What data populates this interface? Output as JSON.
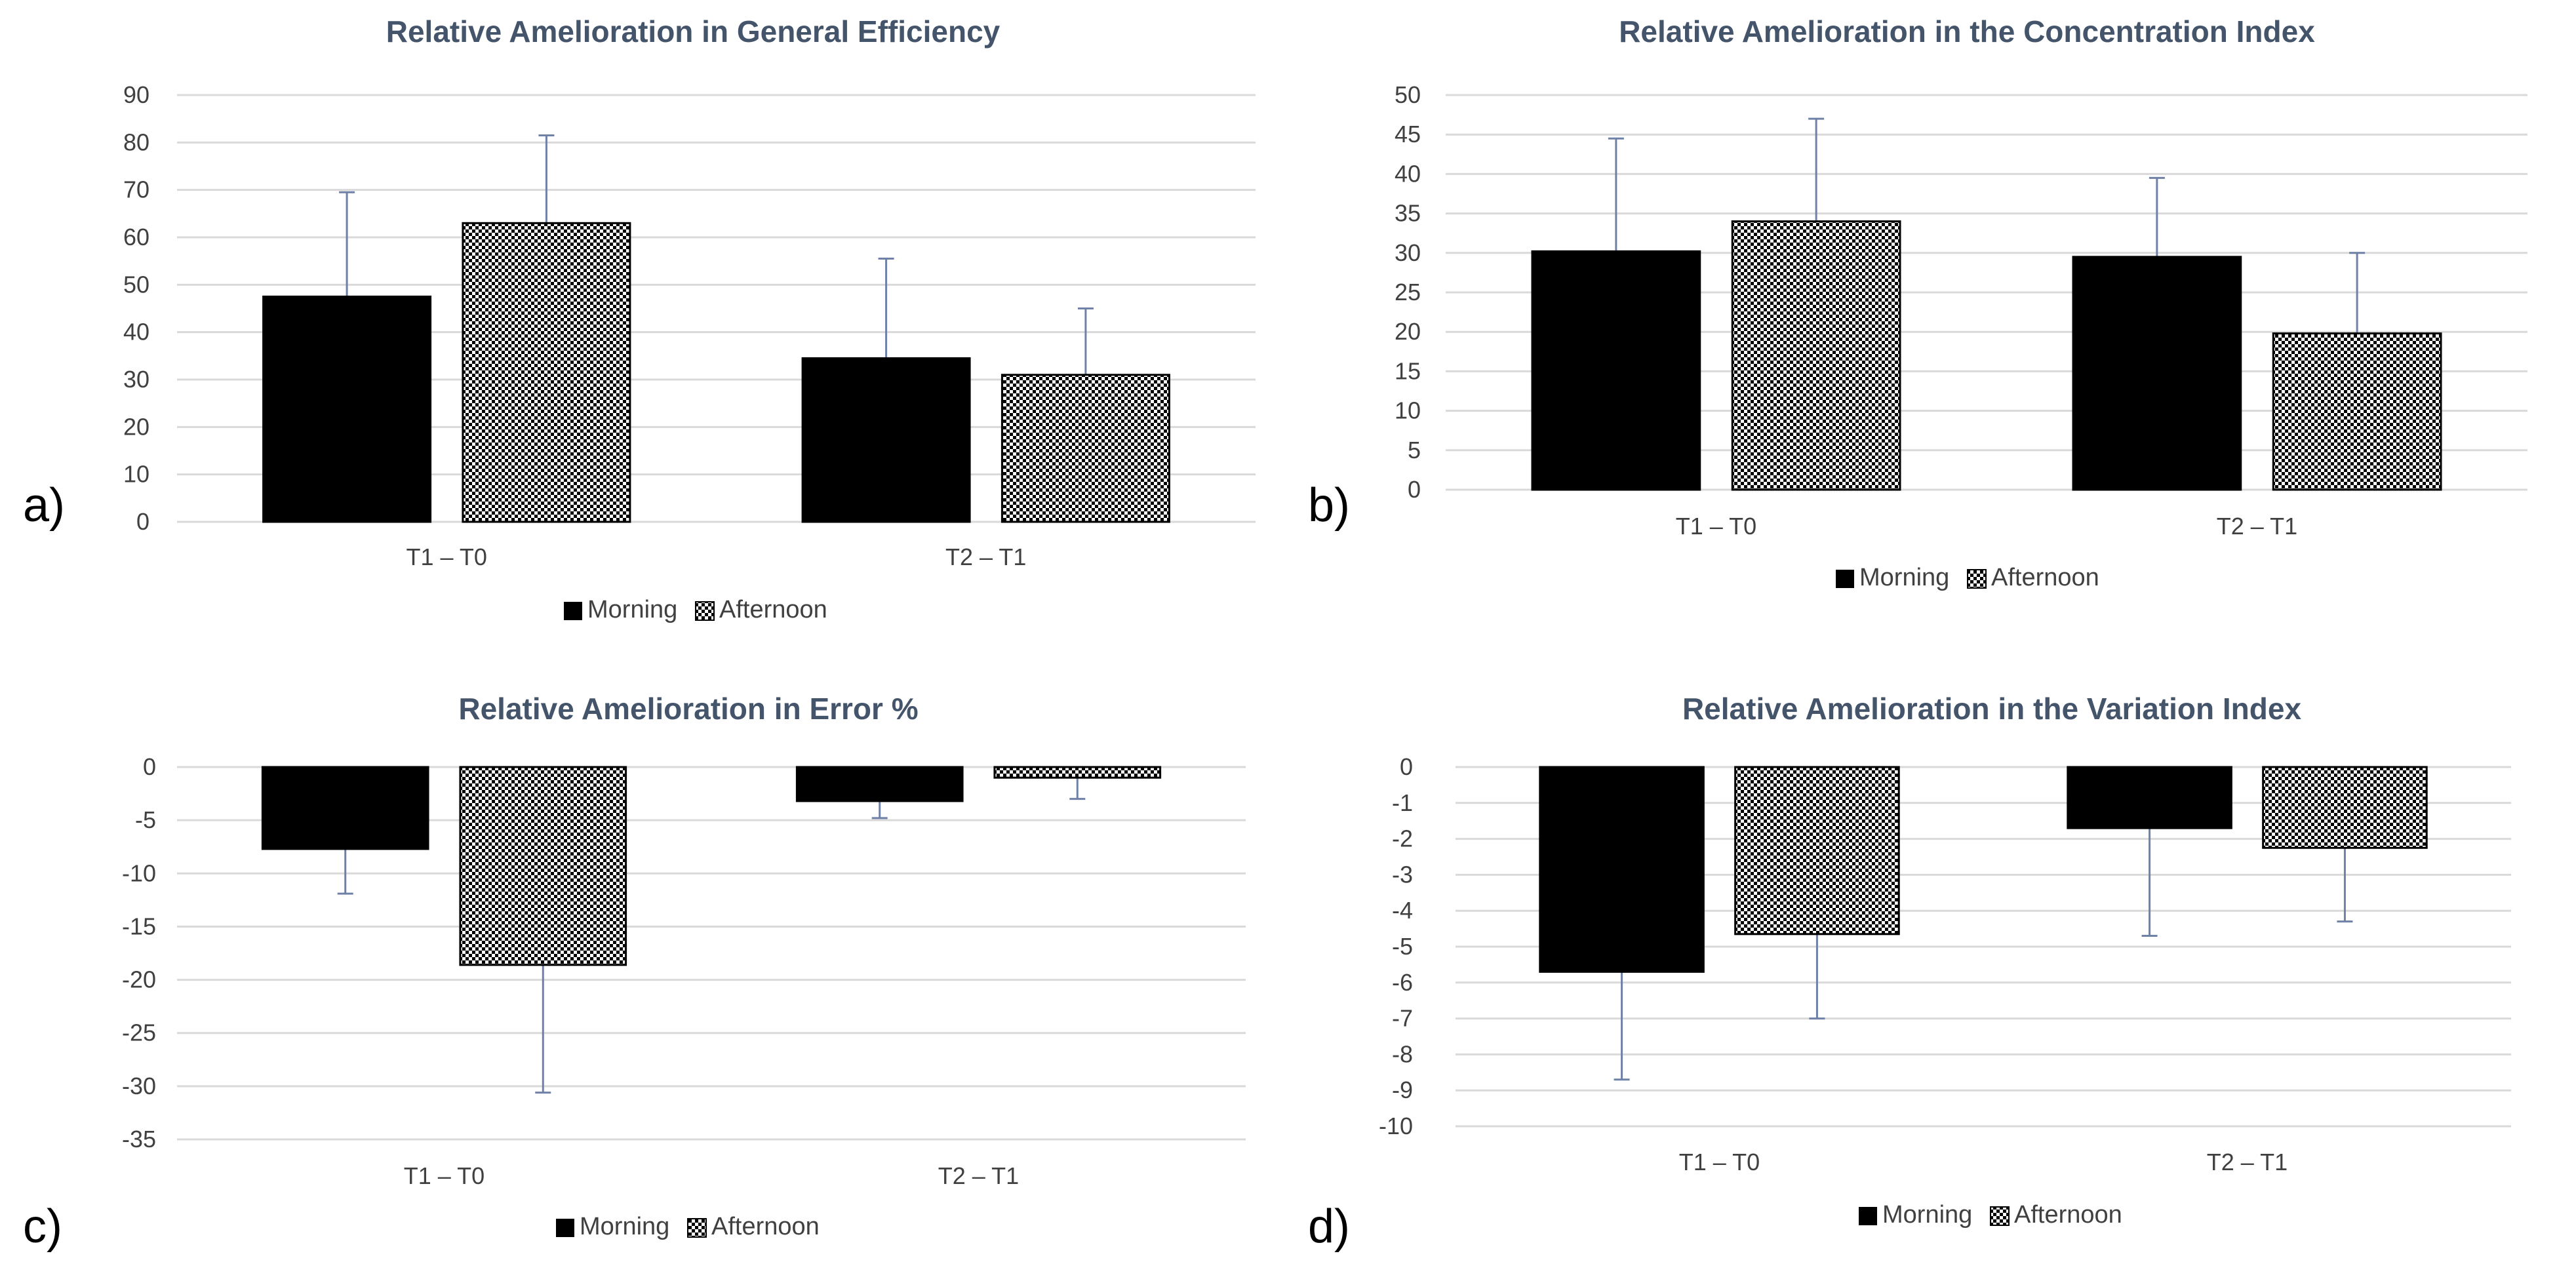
{
  "colors": {
    "morning": "#000000",
    "afternoon_bg": "#ffffff",
    "afternoon_dot": "#000000",
    "grid": "#d9d9d9",
    "error_bar": "#6f81a6",
    "title": "#44546a",
    "text": "#404040"
  },
  "chart_data": [
    {
      "panel": "a)",
      "type": "bar",
      "title": "Relative Amelioration in General Efficiency",
      "categories": [
        "T1 – T0",
        "T2 – T1"
      ],
      "ylim": [
        0,
        90
      ],
      "yticks": [
        0,
        10,
        20,
        30,
        40,
        50,
        60,
        70,
        80,
        90
      ],
      "legend": "bottom",
      "series": [
        {
          "name": "Morning",
          "values": [
            47.5,
            34.5
          ],
          "errors": [
            22,
            21
          ]
        },
        {
          "name": "Afternoon",
          "values": [
            63,
            31
          ],
          "errors": [
            18.5,
            14
          ]
        }
      ]
    },
    {
      "panel": "b)",
      "type": "bar",
      "title": "Relative Amelioration in the Concentration Index",
      "categories": [
        "T1 – T0",
        "T2 – T1"
      ],
      "ylim": [
        0,
        50
      ],
      "yticks": [
        0,
        5,
        10,
        15,
        20,
        25,
        30,
        35,
        40,
        45,
        50
      ],
      "legend": "bottom",
      "series": [
        {
          "name": "Morning",
          "values": [
            30.2,
            29.5
          ],
          "errors": [
            14.3,
            10
          ]
        },
        {
          "name": "Afternoon",
          "values": [
            34,
            19.8
          ],
          "errors": [
            13,
            10.2
          ]
        }
      ]
    },
    {
      "panel": "c)",
      "type": "bar",
      "title": "Relative Amelioration in Error %",
      "categories": [
        "T1 – T0",
        "T2 – T1"
      ],
      "ylim": [
        -35,
        0
      ],
      "yticks": [
        0,
        -5,
        -10,
        -15,
        -20,
        -25,
        -30,
        -35
      ],
      "legend": "bottom",
      "series": [
        {
          "name": "Morning",
          "values": [
            -7.7,
            -3.2
          ],
          "errors": [
            4.2,
            1.6
          ]
        },
        {
          "name": "Afternoon",
          "values": [
            -18.6,
            -1
          ],
          "errors": [
            12,
            2
          ]
        }
      ]
    },
    {
      "panel": "d)",
      "type": "bar",
      "title": "Relative Amelioration in the Variation Index",
      "categories": [
        "T1 – T0",
        "T2 – T1"
      ],
      "ylim": [
        -10,
        0
      ],
      "yticks": [
        0,
        -1,
        -2,
        -3,
        -4,
        -5,
        -6,
        -7,
        -8,
        -9,
        -10
      ],
      "legend": "bottom",
      "series": [
        {
          "name": "Morning",
          "values": [
            -5.7,
            -1.7
          ],
          "errors": [
            3,
            3
          ]
        },
        {
          "name": "Afternoon",
          "values": [
            -4.65,
            -2.25
          ],
          "errors": [
            2.35,
            2.05
          ]
        }
      ]
    }
  ]
}
